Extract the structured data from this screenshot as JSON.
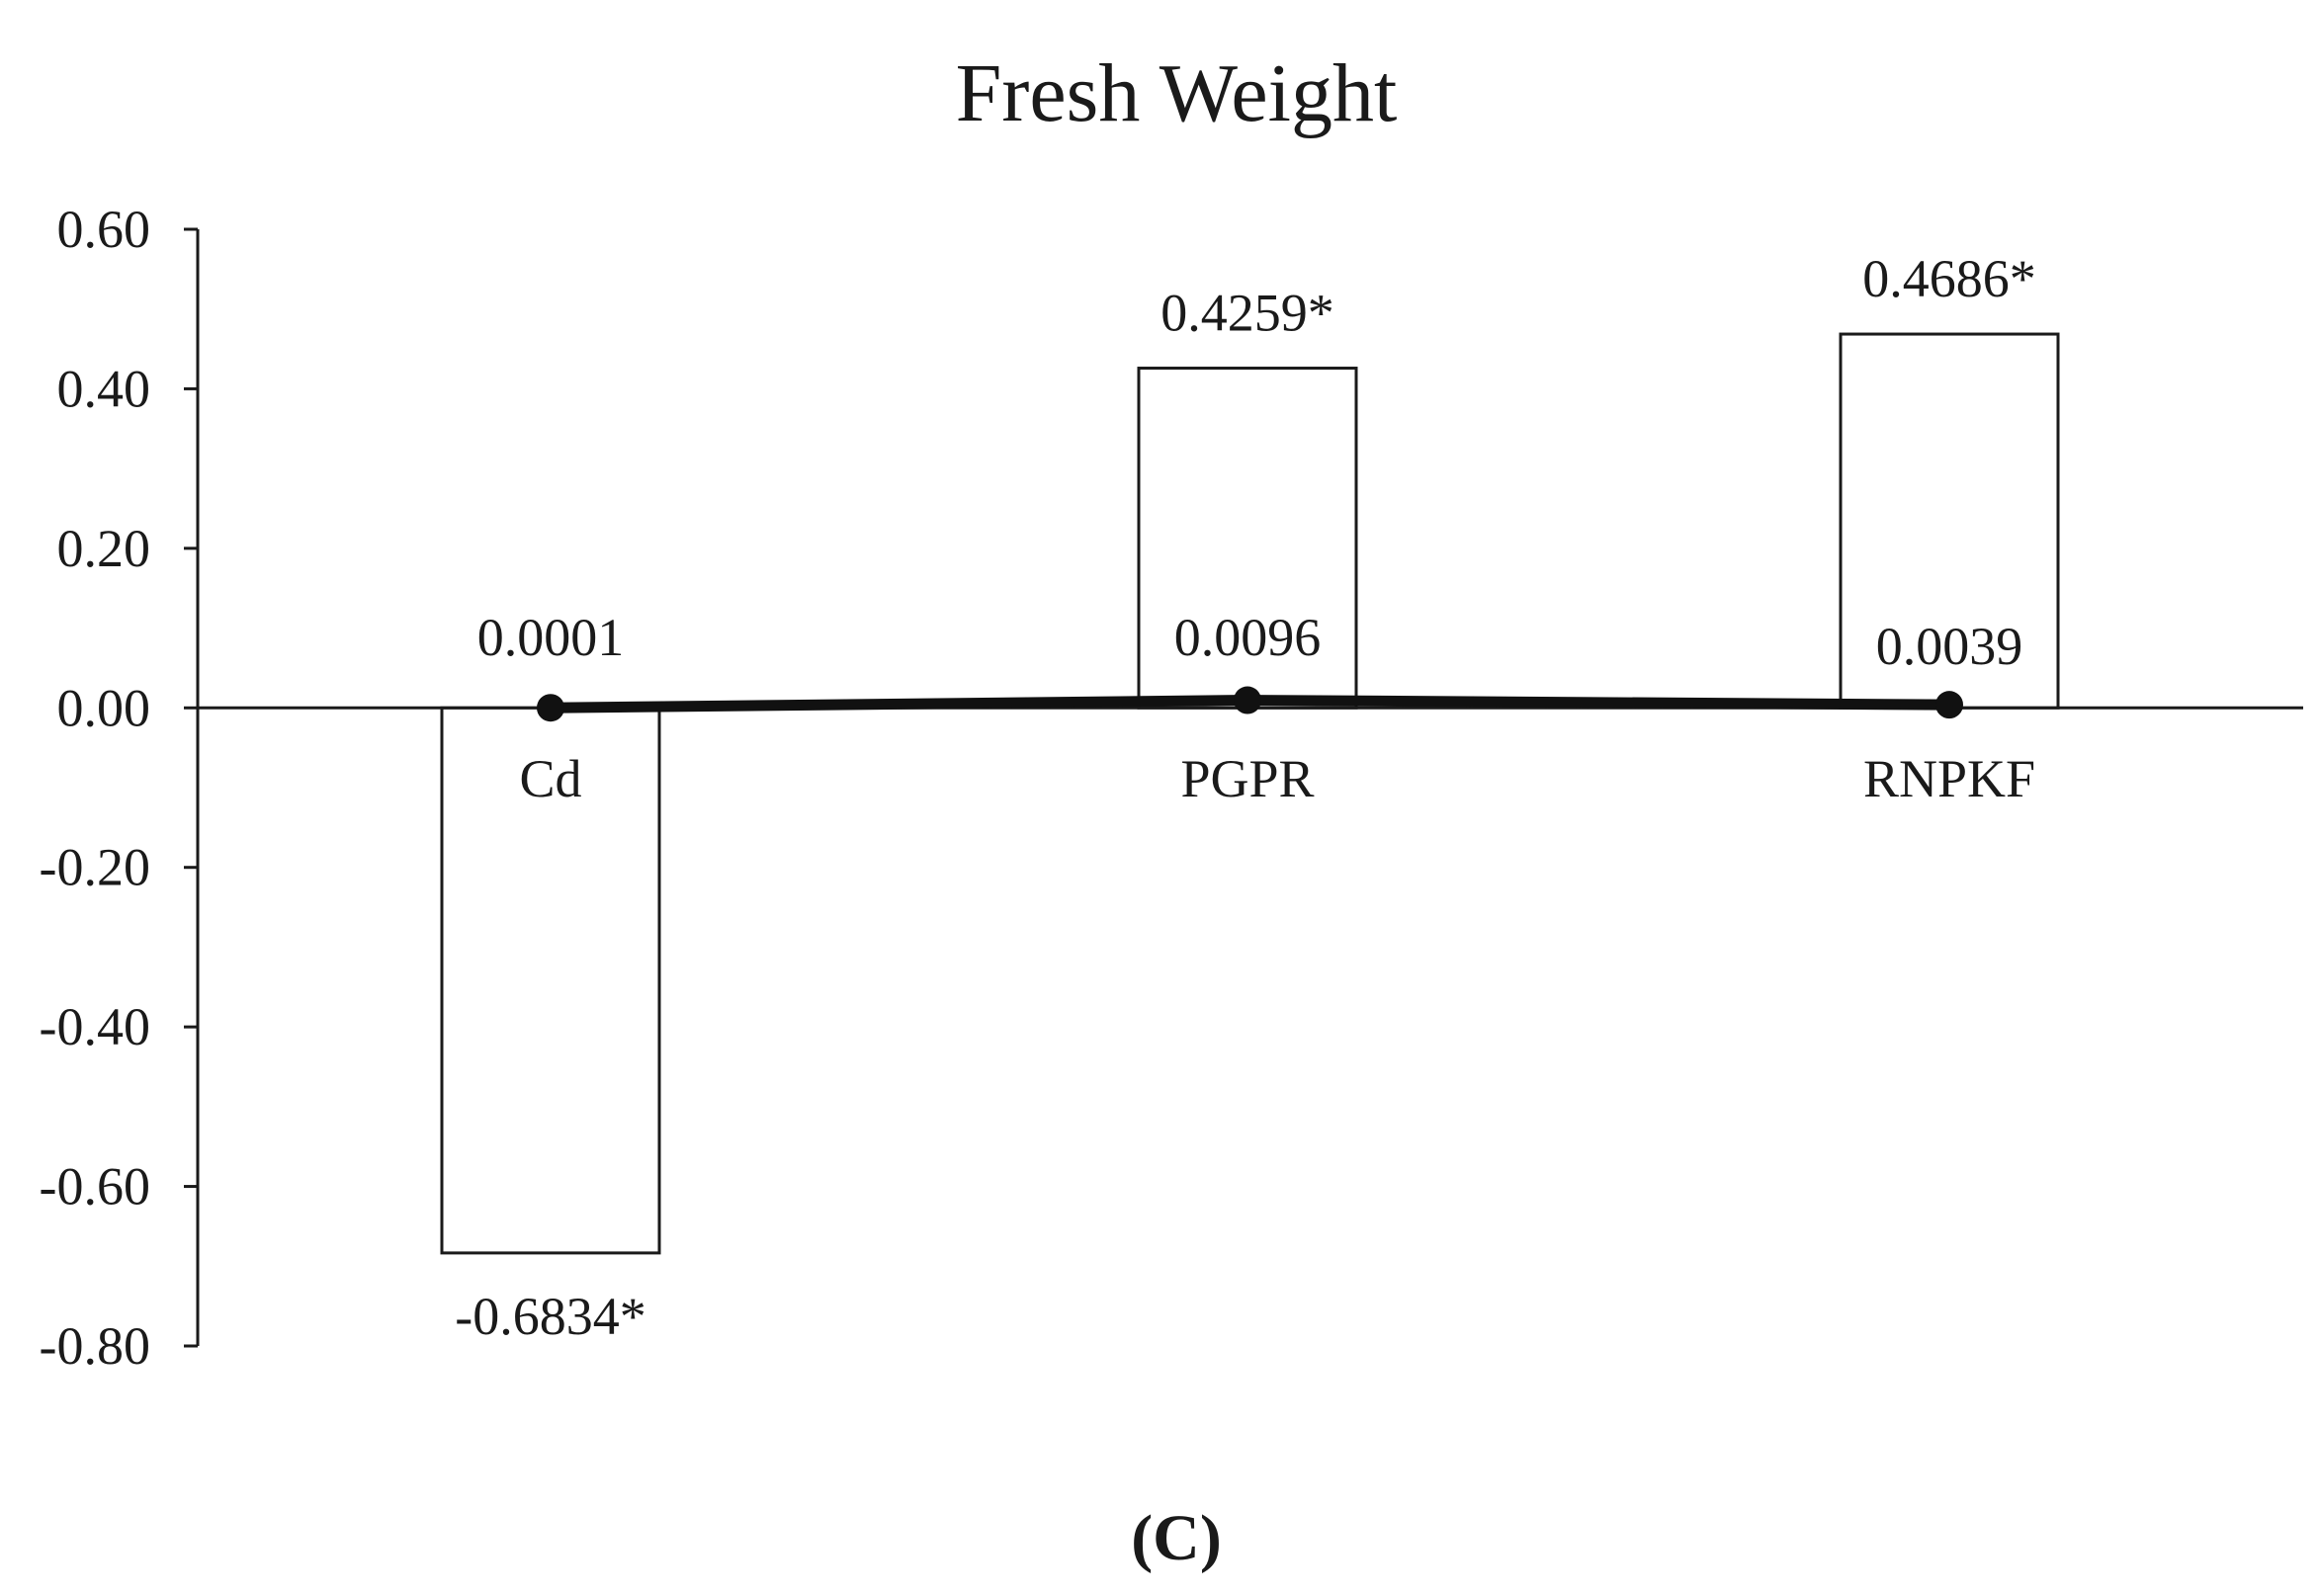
{
  "chart_data": {
    "type": "bar",
    "title": "Fresh Weight",
    "panel_label": "(C)",
    "categories": [
      "Cd",
      "PGPR",
      "RNPKF"
    ],
    "series": [
      {
        "values": [
          -0.6834,
          0.4259,
          0.4686
        ],
        "labels": [
          "-0.6834*",
          "0.4259*",
          "0.4686*"
        ],
        "style": "bar"
      },
      {
        "values": [
          0.0001,
          0.0096,
          0.0039
        ],
        "labels": [
          "0.0001",
          "0.0096",
          "0.0039"
        ],
        "style": "line-with-markers"
      }
    ],
    "yticks": [
      "0.60",
      "0.40",
      "0.20",
      "0.00",
      "-0.20",
      "-0.40",
      "-0.60",
      "-0.80"
    ],
    "ylim": [
      -0.8,
      0.6
    ],
    "xlabel": "",
    "ylabel": "",
    "grid": false,
    "legend": "none",
    "colors": {
      "bar_fill": "#ffffff",
      "bar_stroke": "#1a1a1a",
      "line": "#111111",
      "text": "#1a1a1a"
    }
  }
}
